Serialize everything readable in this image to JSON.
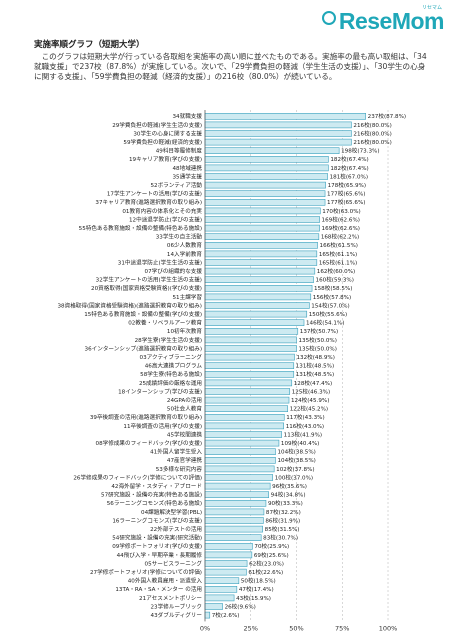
{
  "brand": {
    "name": "ReseMom",
    "sub": "リセマム"
  },
  "section_title": "実施率順グラフ（短期大学）",
  "intro": "このグラフは短期大学が行っている各取組を実施率の高い順に並べたものである。実施率の最も高い取組は、「34就職支援」で237校（87.8%）が実施している。次いで、「29学費負担の軽減（学生生活の支援）」、「30学生の心身に関する支援」、「59学費負担の軽減（経済的支援）」の216校（80.0%）が続いている。",
  "colors": {
    "bar_fill": "#cdeaf1",
    "bar_stroke": "#3aa0bd",
    "brand": "#1fa7b8",
    "grid": "#b0b0b0"
  },
  "chart_data": {
    "type": "bar",
    "orientation": "horizontal",
    "xlim": [
      0,
      100
    ],
    "xticks": [
      "0%",
      "25%",
      "50%",
      "75%",
      "100%"
    ],
    "grid": true,
    "bars": [
      {
        "label": "34就職支援",
        "value_label": "237校(87.8%)",
        "value": 87.8
      },
      {
        "label": "29学費負担の軽減(学生生活の支援)",
        "value_label": "216校(80.0%)",
        "value": 80.0
      },
      {
        "label": "30学生の心身に関する支援",
        "value_label": "216校(80.0%)",
        "value": 80.0
      },
      {
        "label": "59学費負担の軽減(経済的支援)",
        "value_label": "216校(80.0%)",
        "value": 80.0
      },
      {
        "label": "49科目等履修制度",
        "value_label": "198校(73.3%)",
        "value": 73.3
      },
      {
        "label": "19キャリア教育(学びの支援)",
        "value_label": "182校(67.4%)",
        "value": 67.4
      },
      {
        "label": "48地域連携",
        "value_label": "182校(67.4%)",
        "value": 67.4
      },
      {
        "label": "35通学支援",
        "value_label": "181校(67.0%)",
        "value": 67.0
      },
      {
        "label": "52ボランティア活動",
        "value_label": "178校(65.9%)",
        "value": 65.9
      },
      {
        "label": "17学生アンケートの活用(学びの支援)",
        "value_label": "177校(65.6%)",
        "value": 65.6
      },
      {
        "label": "37キャリア教育(進路選択教育の取り組み)",
        "value_label": "177校(65.6%)",
        "value": 65.6
      },
      {
        "label": "01教育内容の体系化とその充実",
        "value_label": "170校(63.0%)",
        "value": 63.0
      },
      {
        "label": "12中途退学防止(学びの支援)",
        "value_label": "169校(62.6%)",
        "value": 62.6
      },
      {
        "label": "55特色ある教育施設・設備の整備(特色ある施設)",
        "value_label": "169校(62.6%)",
        "value": 62.6
      },
      {
        "label": "33学生の自主活動",
        "value_label": "168校(62.2%)",
        "value": 62.2
      },
      {
        "label": "06少人数教育",
        "value_label": "166校(61.5%)",
        "value": 61.5
      },
      {
        "label": "14入学前教育",
        "value_label": "165校(61.1%)",
        "value": 61.1
      },
      {
        "label": "31中途退学防止(学生生活の支援)",
        "value_label": "165校(61.1%)",
        "value": 61.1
      },
      {
        "label": "07学びの組織的な支援",
        "value_label": "162校(60.0%)",
        "value": 60.0
      },
      {
        "label": "32学生アンケートの活用(学生生活の支援)",
        "value_label": "160校(59.3%)",
        "value": 59.3
      },
      {
        "label": "20資格取得(国家資格受験資格)(学びの支援)",
        "value_label": "158校(58.5%)",
        "value": 58.5
      },
      {
        "label": "51主課学習",
        "value_label": "156校(57.8%)",
        "value": 57.8
      },
      {
        "label": "38資格取得(国家資格受験資格)(進路選択教育の取り組み)",
        "value_label": "154校(57.0%)",
        "value": 57.0
      },
      {
        "label": "15特色ある教育施設・設備の整備(学びの支援)",
        "value_label": "150校(55.6%)",
        "value": 55.6
      },
      {
        "label": "02教養・リベラルアーツ教育",
        "value_label": "146校(54.1%)",
        "value": 54.1
      },
      {
        "label": "10初年次教育",
        "value_label": "137校(50.7%)",
        "value": 50.7
      },
      {
        "label": "28学生寮(学生生活の支援)",
        "value_label": "135校(50.0%)",
        "value": 50.0
      },
      {
        "label": "36インターンシップ(進路選択教育の取り組み)",
        "value_label": "135校(50.0%)",
        "value": 50.0
      },
      {
        "label": "03アクティブラーニング",
        "value_label": "132校(48.9%)",
        "value": 48.9
      },
      {
        "label": "46高大連携プログラム",
        "value_label": "131校(48.5%)",
        "value": 48.5
      },
      {
        "label": "58学生寮(特色ある施設)",
        "value_label": "131校(48.5%)",
        "value": 48.5
      },
      {
        "label": "25成績評価の厳格な運用",
        "value_label": "128校(47.4%)",
        "value": 47.4
      },
      {
        "label": "18インターンシップ(学びの支援)",
        "value_label": "125校(46.3%)",
        "value": 46.3
      },
      {
        "label": "24GPAの活用",
        "value_label": "124校(45.9%)",
        "value": 45.9
      },
      {
        "label": "50社会人教育",
        "value_label": "122校(45.2%)",
        "value": 45.2
      },
      {
        "label": "39卒後調査の活用(進路選択教育の取り組み)",
        "value_label": "117校(43.3%)",
        "value": 43.3
      },
      {
        "label": "11卒後調査の活用(学びの支援)",
        "value_label": "116校(43.0%)",
        "value": 43.0
      },
      {
        "label": "45学校間連携",
        "value_label": "113校(41.9%)",
        "value": 41.9
      },
      {
        "label": "08学修成果のフィードバック(学びの支援)",
        "value_label": "109校(40.4%)",
        "value": 40.4
      },
      {
        "label": "41外国人留学生受入",
        "value_label": "104校(38.5%)",
        "value": 38.5
      },
      {
        "label": "47産官学連携",
        "value_label": "104校(38.5%)",
        "value": 38.5
      },
      {
        "label": "53多様な研究内容",
        "value_label": "102校(37.8%)",
        "value": 37.8
      },
      {
        "label": "26学修成果のフィードバック(学修についての評価)",
        "value_label": "100校(37.0%)",
        "value": 37.0
      },
      {
        "label": "42海外留学・スタディ・アブロード",
        "value_label": "96校(35.6%)",
        "value": 35.6
      },
      {
        "label": "57研究施設・設備の充実(特色ある施設)",
        "value_label": "94校(34.8%)",
        "value": 34.8
      },
      {
        "label": "56ラーニングコモンズ(特色ある施設)",
        "value_label": "90校(33.3%)",
        "value": 33.3
      },
      {
        "label": "04課題解決型学習(PBL)",
        "value_label": "87校(32.2%)",
        "value": 32.2
      },
      {
        "label": "16ラーニングコモンズ(学びの支援)",
        "value_label": "86校(31.9%)",
        "value": 31.9
      },
      {
        "label": "22外部テストの活用",
        "value_label": "85校(31.5%)",
        "value": 31.5
      },
      {
        "label": "54研究施設・設備の充実(研究活動)",
        "value_label": "83校(30.7%)",
        "value": 30.7
      },
      {
        "label": "09学修ポートフォリオ(学びの支援)",
        "value_label": "70校(25.9%)",
        "value": 25.9
      },
      {
        "label": "44飛び入学・早期卒業・長期履修",
        "value_label": "69校(25.6%)",
        "value": 25.6
      },
      {
        "label": "05サービスラーニング",
        "value_label": "62校(23.0%)",
        "value": 23.0
      },
      {
        "label": "27学修ポートフォリオ(学修についての評価)",
        "value_label": "61校(22.6%)",
        "value": 22.6
      },
      {
        "label": "40外国人教員雇用・派遣受入",
        "value_label": "50校(18.5%)",
        "value": 18.5
      },
      {
        "label": "13TA・RA・SA・メンター の活用",
        "value_label": "47校(17.4%)",
        "value": 17.4
      },
      {
        "label": "21アセスメントポリシー",
        "value_label": "43校(15.9%)",
        "value": 15.9
      },
      {
        "label": "23学修ルーブリック",
        "value_label": "26校(9.6%)",
        "value": 9.6
      },
      {
        "label": "43ダブルディグリー",
        "value_label": "7校(2.6%)",
        "value": 2.6
      }
    ]
  }
}
